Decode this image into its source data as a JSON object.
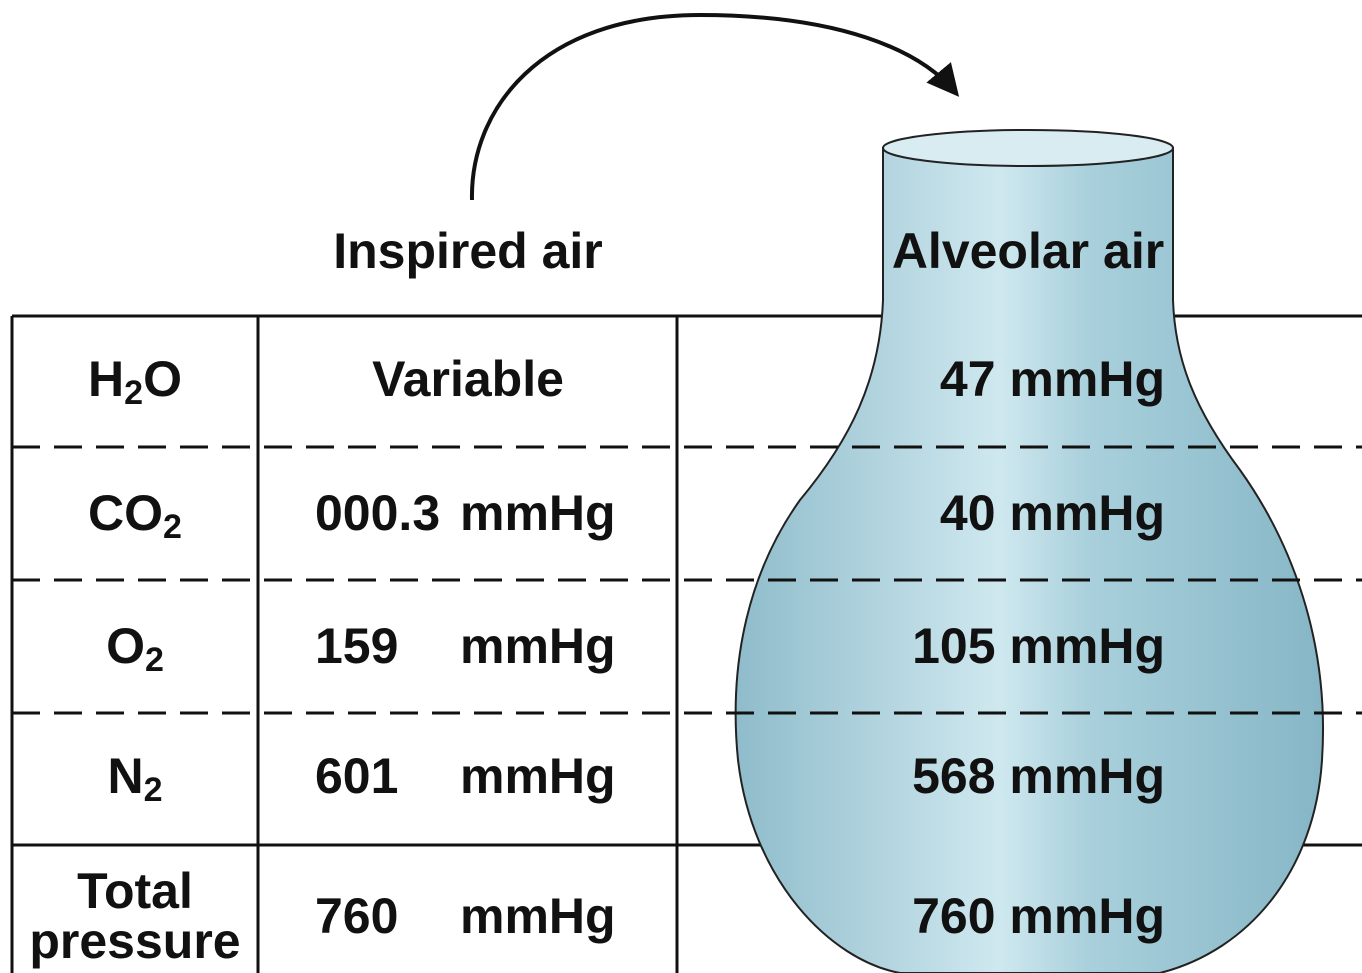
{
  "header": {
    "inspired": "Inspired air",
    "alveolar": "Alveolar air"
  },
  "table": {
    "rows": [
      {
        "gas": {
          "text": "H",
          "sub": "2",
          "after": "O"
        },
        "inspired": {
          "value": "Variable"
        },
        "alveolar": "47 mmHg"
      },
      {
        "gas": {
          "text": "CO",
          "sub": "2"
        },
        "inspired": {
          "value": "000.3",
          "unit": "mmHg"
        },
        "alveolar": "40 mmHg"
      },
      {
        "gas": {
          "text": "O",
          "sub": "2"
        },
        "inspired": {
          "value": "159",
          "unit": "mmHg"
        },
        "alveolar": "105 mmHg"
      },
      {
        "gas": {
          "text": "N",
          "sub": "2"
        },
        "inspired": {
          "value": "601",
          "unit": "mmHg"
        },
        "alveolar": "568 mmHg"
      },
      {
        "gas": {
          "lines": [
            "Total",
            "pressure"
          ]
        },
        "inspired": {
          "value": "760",
          "unit": "mmHg"
        },
        "alveolar": "760 mmHg"
      }
    ]
  }
}
